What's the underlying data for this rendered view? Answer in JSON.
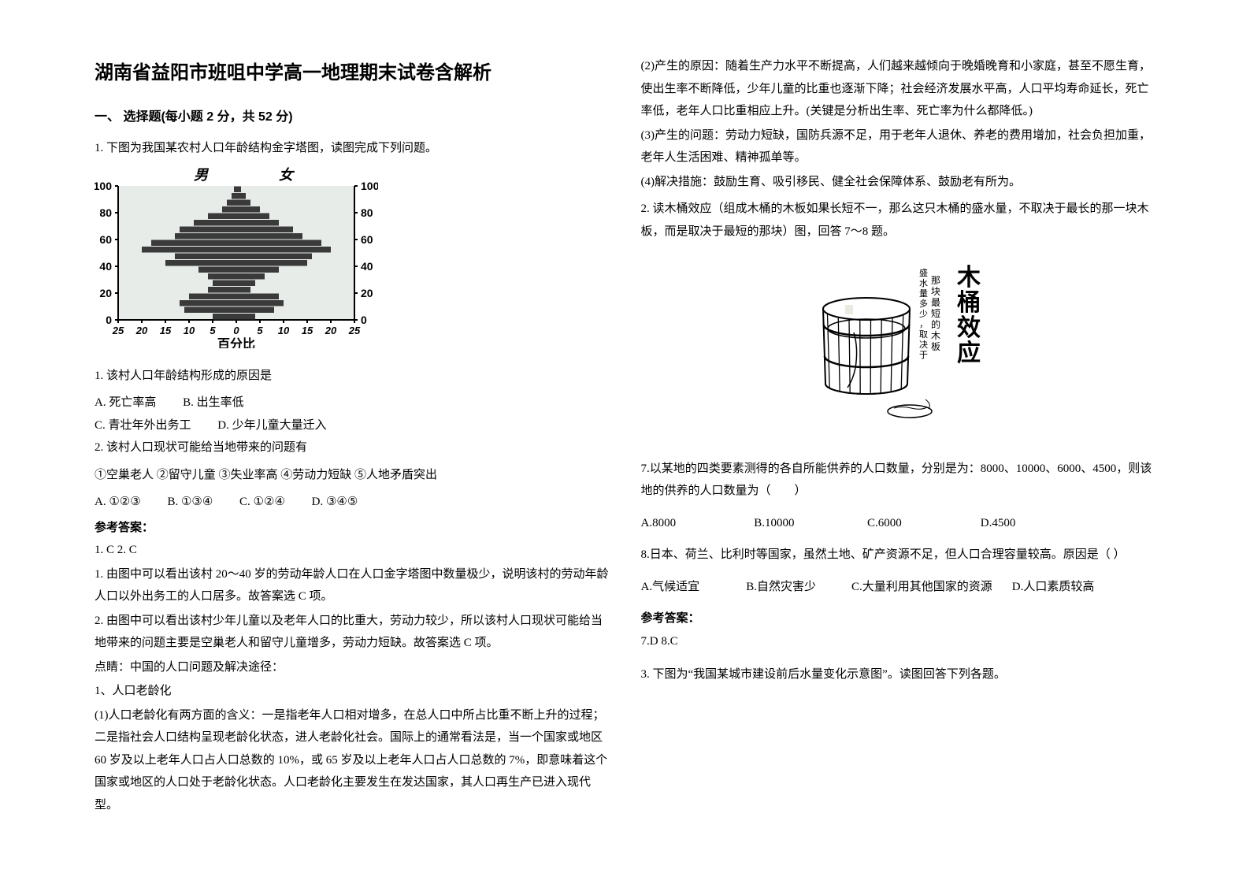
{
  "title": "湖南省益阳市班咀中学高一地理期末试卷含解析",
  "section1": "一、 选择题(每小题 2 分，共 52 分)",
  "q1_intro": "1. 下图为我国某农村人口年龄结构金字塔图，读图完成下列问题。",
  "pyramid": {
    "male_label": "男",
    "female_label": "女",
    "y_ticks": [
      0,
      20,
      40,
      60,
      80,
      100
    ],
    "x_ticks_left": [
      25,
      20,
      15,
      10,
      5,
      0
    ],
    "x_ticks_right": [
      0,
      5,
      10,
      15,
      20,
      25
    ],
    "x_label": "百分比",
    "bg": "#e8ece9",
    "data": [
      {
        "age": 2.5,
        "m": 5,
        "f": 4
      },
      {
        "age": 7.5,
        "m": 11,
        "f": 8
      },
      {
        "age": 12.5,
        "m": 12,
        "f": 10
      },
      {
        "age": 17.5,
        "m": 10,
        "f": 9
      },
      {
        "age": 22.5,
        "m": 6,
        "f": 3
      },
      {
        "age": 27.5,
        "m": 5,
        "f": 4
      },
      {
        "age": 32.5,
        "m": 6,
        "f": 6
      },
      {
        "age": 37.5,
        "m": 8,
        "f": 9
      },
      {
        "age": 42.5,
        "m": 15,
        "f": 15
      },
      {
        "age": 47.5,
        "m": 13,
        "f": 16
      },
      {
        "age": 52.5,
        "m": 20,
        "f": 20
      },
      {
        "age": 57.5,
        "m": 18,
        "f": 18
      },
      {
        "age": 62.5,
        "m": 13,
        "f": 14
      },
      {
        "age": 67.5,
        "m": 12,
        "f": 12
      },
      {
        "age": 72.5,
        "m": 9,
        "f": 9
      },
      {
        "age": 77.5,
        "m": 6,
        "f": 7
      },
      {
        "age": 82.5,
        "m": 3,
        "f": 5
      },
      {
        "age": 87.5,
        "m": 2,
        "f": 3
      },
      {
        "age": 92.5,
        "m": 1,
        "f": 2
      },
      {
        "age": 97.5,
        "m": 0.5,
        "f": 1
      }
    ],
    "bar_color": "#3a3a3a",
    "axis_color": "#000000"
  },
  "q1_sub1": "1.  该村人口年龄结构形成的原因是",
  "q1_sub1_opts": {
    "a": "A.  死亡率高",
    "b": "B.  出生率低",
    "c": "C.  青壮年外出务工",
    "d": "D.  少年儿童大量迁入"
  },
  "q1_sub2": "2.  该村人口现状可能给当地带来的问题有",
  "q1_sub2_list": "①空巢老人    ②留守儿童    ③失业率高    ④劳动力短缺    ⑤人地矛盾突出",
  "q1_sub2_opts": {
    "a": "A.  ①②③",
    "b": "B.  ①③④",
    "c": "C.  ①②④",
    "d": "D.  ③④⑤"
  },
  "answer_label": "参考答案：",
  "q1_ans": "1.  C        2.  C",
  "q1_exp1": "1.   由图中可以看出该村 20～40 岁的劳动年龄人口在人口金字塔图中数量极少，说明该村的劳动年龄人口以外出务工的人口居多。故答案选 C 项。",
  "q1_exp2": "2.   由图中可以看出该村少年儿童以及老年人口的比重大，劳动力较少，所以该村人口现状可能给当地带来的问题主要是空巢老人和留守儿童增多，劳动力短缺。故答案选 C 项。",
  "q1_exp3": "点睛：中国的人口问题及解决途径：",
  "q1_exp4": "1、人口老龄化",
  "q1_exp5": "(1)人口老龄化有两方面的含义：一是指老年人口相对增多，在总人口中所占比重不断上升的过程；二是指社会人口结构呈现老龄化状态，进人老龄化社会。国际上的通常看法是，当一个国家或地区 60 岁及以上老年人口占人口总数的 10%，或 65 岁及以上老年人口占人口总数的 7%，即意味着这个国家或地区的人口处于老龄化状态。人口老龄化主要发生在发达国家，其人口再生产已进入现代型。",
  "col2_p1": "(2)产生的原因：随着生产力水平不断提高，人们越来越倾向于晚婚晚育和小家庭，甚至不愿生育，使出生率不断降低，少年儿童的比重也逐渐下降；社会经济发展水平高，人口平均寿命延长，死亡率低，老年人口比重相应上升。(关键是分析出生率、死亡率为什么都降低。)",
  "col2_p2": "(3)产生的问题：劳动力短缺，国防兵源不足，用于老年人退休、养老的费用增加，社会负担加重，老年人生活困难、精神孤单等。",
  "col2_p3": "(4)解决措施：鼓励生育、吸引移民、健全社会保障体系、鼓励老有所为。",
  "q2_intro": "2. 读木桶效应（组成木桶的木板如果长短不一，那么这只木桶的盛水量，不取决于最长的那一块木板，而是取决于最短的那块）图，回答 7～8 题。",
  "barrel_text_right": "木桶效应",
  "barrel_text_left1": "那块最短的木板",
  "barrel_text_left2": "盛水量多少，取决于",
  "q7": "7.以某地的四类要素测得的各自所能供养的人口数量，分别是为：8000、10000、6000、4500，则该地的供养的人口数量为（　　）",
  "q7_opts": {
    "a": "A.8000",
    "b": "B.10000",
    "c": "C.6000",
    "d": "D.4500"
  },
  "q8": "8.日本、荷兰、比利时等国家，虽然土地、矿产资源不足，但人口合理容量较高。原因是（     ）",
  "q8_opts": {
    "a": "A.气候适宜",
    "b": "B.自然灾害少",
    "c": "C.大量利用其他国家的资源",
    "d": "D.人口素质较高"
  },
  "q78_ans": "7.D   8.C",
  "q3_intro": "3. 下图为“我国某城市建设前后水量变化示意图”。读图回答下列各题。"
}
